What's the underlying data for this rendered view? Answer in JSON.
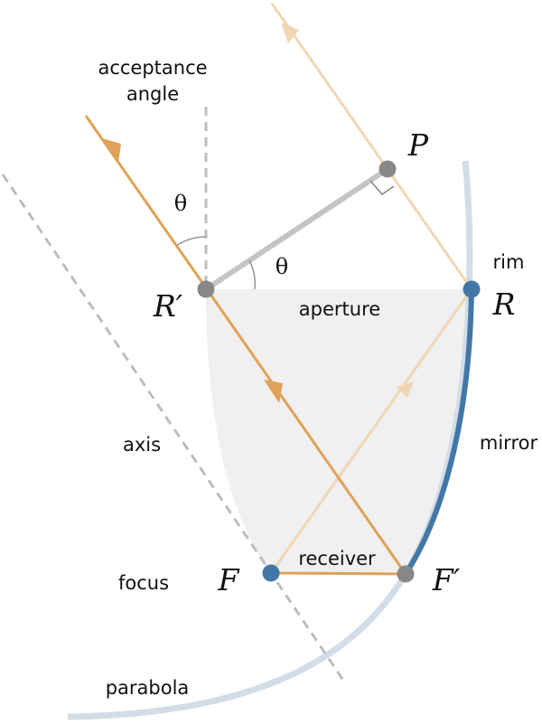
{
  "labels": {
    "acceptance_line1": "acceptance",
    "acceptance_line2": "angle",
    "theta_top": "θ",
    "theta_mid": "θ",
    "aperture": "aperture",
    "rim": "rim",
    "axis": "axis",
    "mirror": "mirror",
    "focus": "focus",
    "receiver": "receiver",
    "parabola": "parabola"
  },
  "points": {
    "P": "P",
    "R": "R",
    "R_prime": "R′",
    "F": "F",
    "F_prime": "F′"
  },
  "colors": {
    "orange_ray": "#e0a257",
    "light_ray": "#f0d6b4",
    "mirror_blue": "#4378a6",
    "parabola_light": "#d3dde7",
    "gray_point": "#888888",
    "dashed_gray": "#bdbdbd",
    "shade": "#f0f0f0",
    "segment_gray": "#c4c4c4"
  }
}
